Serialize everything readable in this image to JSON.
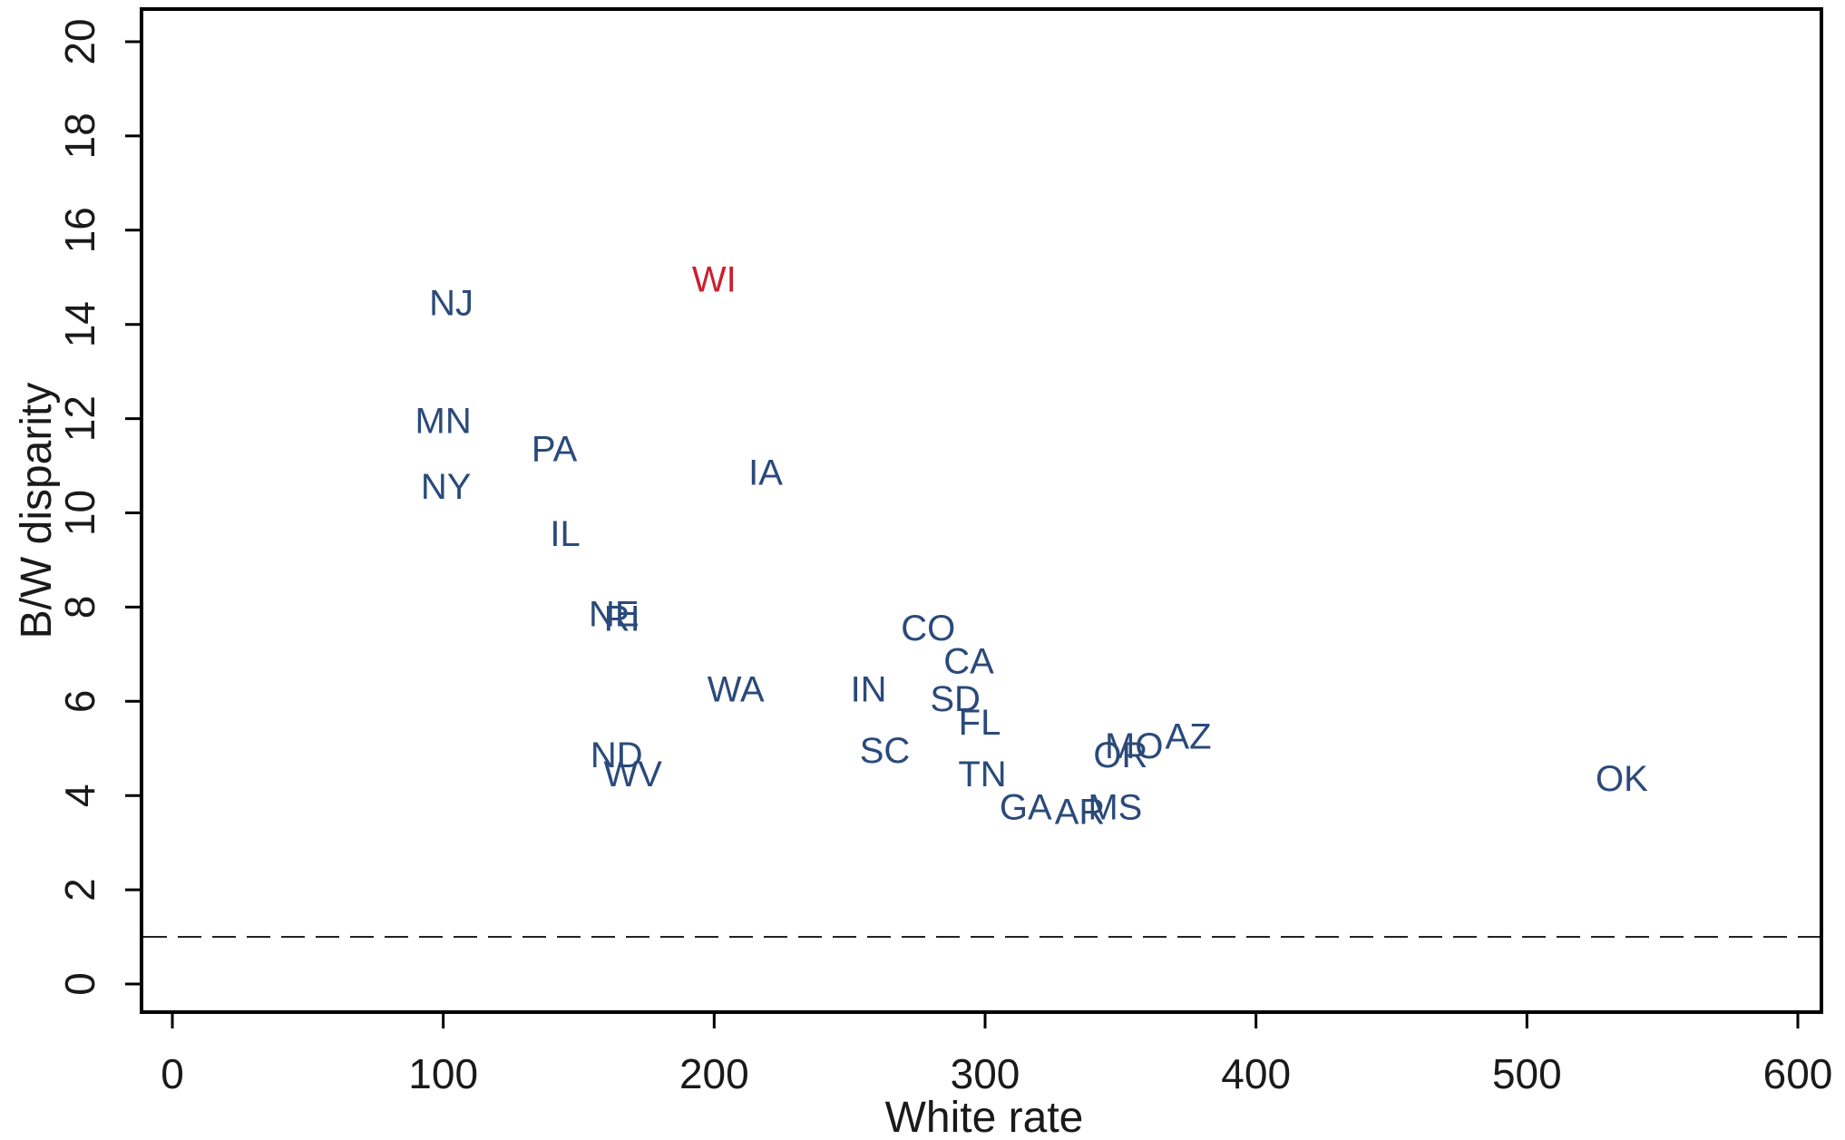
{
  "chart_data": {
    "type": "scatter",
    "title": "",
    "xlabel": "White rate",
    "ylabel": "B/W disparity",
    "xlim": [
      0,
      600
    ],
    "ylim": [
      0,
      20
    ],
    "x_ticks": [
      0,
      100,
      200,
      300,
      400,
      500,
      600
    ],
    "y_ticks": [
      0,
      2,
      4,
      6,
      8,
      10,
      12,
      14,
      16,
      18,
      20
    ],
    "x_tick_labels": [
      "0",
      "100",
      "200",
      "300",
      "400",
      "500",
      "600"
    ],
    "y_tick_labels": [
      "0",
      "2",
      "4",
      "6",
      "8",
      "10",
      "12",
      "14",
      "16",
      "18",
      "20"
    ],
    "grid": false,
    "reference_line": {
      "y": 1,
      "style": "dashed"
    },
    "default_color": "#2a4a7a",
    "highlight_color": "#cc1f2f",
    "points": [
      {
        "label": "NJ",
        "x": 103,
        "y": 14.4
      },
      {
        "label": "WI",
        "x": 200,
        "y": 14.9,
        "highlight": true
      },
      {
        "label": "MN",
        "x": 100,
        "y": 11.9
      },
      {
        "label": "PA",
        "x": 141,
        "y": 11.3
      },
      {
        "label": "NY",
        "x": 101,
        "y": 10.5
      },
      {
        "label": "IA",
        "x": 219,
        "y": 10.8
      },
      {
        "label": "IL",
        "x": 145,
        "y": 9.5
      },
      {
        "label": "NE",
        "x": 163,
        "y": 7.8
      },
      {
        "label": "RI",
        "x": 166,
        "y": 7.7
      },
      {
        "label": "CO",
        "x": 279,
        "y": 7.5
      },
      {
        "label": "CA",
        "x": 294,
        "y": 6.8
      },
      {
        "label": "WA",
        "x": 208,
        "y": 6.2
      },
      {
        "label": "IN",
        "x": 257,
        "y": 6.2
      },
      {
        "label": "SD",
        "x": 289,
        "y": 6.0
      },
      {
        "label": "FL",
        "x": 298,
        "y": 5.5
      },
      {
        "label": "ND",
        "x": 164,
        "y": 4.8
      },
      {
        "label": "WV",
        "x": 170,
        "y": 4.4
      },
      {
        "label": "SC",
        "x": 263,
        "y": 4.9
      },
      {
        "label": "TN",
        "x": 299,
        "y": 4.4
      },
      {
        "label": "MO",
        "x": 355,
        "y": 5.0
      },
      {
        "label": "AZ",
        "x": 375,
        "y": 5.2
      },
      {
        "label": "OR",
        "x": 350,
        "y": 4.8
      },
      {
        "label": "GA",
        "x": 315,
        "y": 3.7
      },
      {
        "label": "AR",
        "x": 335,
        "y": 3.6
      },
      {
        "label": "MS",
        "x": 348,
        "y": 3.7
      },
      {
        "label": "OK",
        "x": 535,
        "y": 4.3
      }
    ]
  }
}
